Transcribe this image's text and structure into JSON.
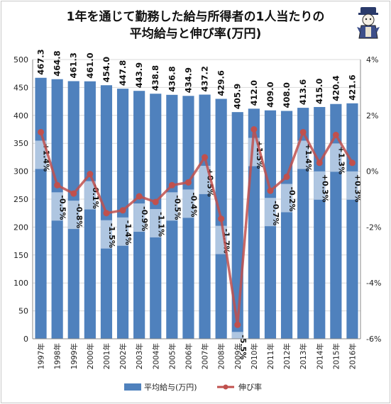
{
  "chart_data": {
    "type": "bar+line",
    "title_line1": "1年を通じて勤務した給与所得者の1人当たりの",
    "title_line2": "平均給与と伸び率(万円)",
    "categories": [
      "1997年",
      "1998年",
      "1999年",
      "2000年",
      "2001年",
      "2002年",
      "2003年",
      "2004年",
      "2005年",
      "2006年",
      "2007年",
      "2008年",
      "2009年",
      "2010年",
      "2011年",
      "2012年",
      "2013年",
      "2014年",
      "2015年",
      "2016年"
    ],
    "bar_series": {
      "name": "平均給与(万円)",
      "color": "#4f81bd",
      "values": [
        467.3,
        464.8,
        461.3,
        461.0,
        454.0,
        447.8,
        443.9,
        438.8,
        436.8,
        434.9,
        437.2,
        429.6,
        405.9,
        412.0,
        409.0,
        408.0,
        413.6,
        415.0,
        420.4,
        421.6
      ],
      "labels": [
        "467.3",
        "464.8",
        "461.3",
        "461.0",
        "454.0",
        "447.8",
        "443.9",
        "438.8",
        "436.8",
        "434.9",
        "437.2",
        "429.6",
        "405.9",
        "412.0",
        "409.0",
        "408.0",
        "413.6",
        "415.0",
        "420.4",
        "421.6"
      ]
    },
    "line_series": {
      "name": "伸び率",
      "color": "#c0504d",
      "values": [
        1.4,
        -0.5,
        -0.8,
        -0.1,
        -1.5,
        -1.4,
        -0.9,
        -1.1,
        -0.5,
        -0.4,
        0.5,
        -1.7,
        -5.5,
        1.5,
        -0.7,
        -0.2,
        1.4,
        0.3,
        1.3,
        0.3
      ],
      "labels": [
        "+1.4%",
        "-0.5%",
        "-0.8%",
        "-0.1%",
        "-1.5%",
        "-1.4%",
        "-0.9%",
        "-1.1%",
        "-0.5%",
        "-0.4%",
        "+0.5%",
        "-1.7%",
        "-5.5%",
        "+1.5%",
        "-0.7%",
        "-0.2%",
        "+1.4%",
        "+0.3%",
        "+1.3%",
        "+0.3%"
      ]
    },
    "y_left": {
      "min": 0,
      "max": 500,
      "ticks": [
        "0",
        "50",
        "100",
        "150",
        "200",
        "250",
        "300",
        "350",
        "400",
        "450",
        "500"
      ]
    },
    "y_right": {
      "min": -6,
      "max": 4,
      "ticks": [
        "-6%",
        "-4%",
        "-2%",
        "0%",
        "2%",
        "4%"
      ]
    },
    "grid": true,
    "legend": "bottom"
  }
}
